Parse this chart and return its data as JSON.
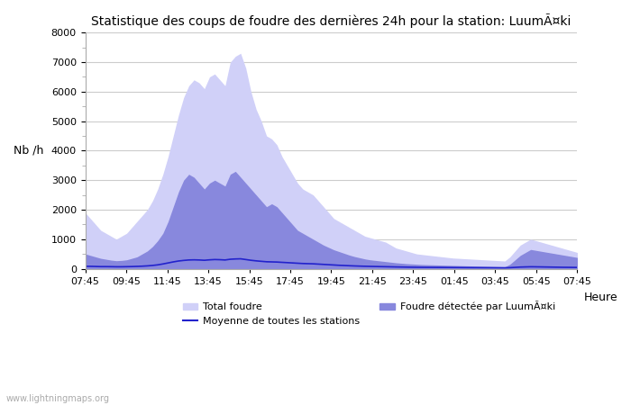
{
  "title": "Statistique des coups de foudre des dernières 24h pour la station: LuumÃ¤ki",
  "xlabel": "Heure",
  "ylabel": "Nb /h",
  "ylim": [
    0,
    8000
  ],
  "yticks": [
    0,
    1000,
    2000,
    3000,
    4000,
    5000,
    6000,
    7000,
    8000
  ],
  "xtick_labels": [
    "07:45",
    "09:45",
    "11:45",
    "13:45",
    "15:45",
    "17:45",
    "19:45",
    "21:45",
    "23:45",
    "01:45",
    "03:45",
    "05:45",
    "07:45"
  ],
  "color_total": "#d0d0f8",
  "color_detected": "#8888dd",
  "color_mean": "#2222cc",
  "watermark": "www.lightningmaps.org",
  "legend_total": "Total foudre",
  "legend_mean": "Moyenne de toutes les stations",
  "legend_detected": "Foudre détectée par LuumÃ¤ki",
  "total_foudre": [
    1900,
    1700,
    1500,
    1300,
    1200,
    1100,
    1000,
    1100,
    1200,
    1400,
    1600,
    1800,
    2000,
    2300,
    2700,
    3200,
    3800,
    4500,
    5200,
    5800,
    6200,
    6400,
    6300,
    6100,
    6500,
    6600,
    6400,
    6200,
    7000,
    7200,
    7300,
    6800,
    6000,
    5400,
    5000,
    4500,
    4400,
    4200,
    3800,
    3500,
    3200,
    2900,
    2700,
    2600,
    2500,
    2300,
    2100,
    1900,
    1700,
    1600,
    1500,
    1400,
    1300,
    1200,
    1100,
    1050,
    1000,
    950,
    900,
    800,
    700,
    650,
    600,
    550,
    500,
    480,
    460,
    440,
    420,
    400,
    380,
    360,
    350,
    340,
    330,
    320,
    310,
    300,
    290,
    280,
    270,
    260,
    400,
    600,
    800,
    900,
    1000,
    950,
    900,
    850,
    800,
    750,
    700,
    650,
    600,
    550
  ],
  "detected": [
    500,
    450,
    400,
    350,
    320,
    290,
    270,
    280,
    300,
    350,
    400,
    500,
    600,
    750,
    950,
    1200,
    1600,
    2100,
    2600,
    3000,
    3200,
    3100,
    2900,
    2700,
    2900,
    3000,
    2900,
    2800,
    3200,
    3300,
    3100,
    2900,
    2700,
    2500,
    2300,
    2100,
    2200,
    2100,
    1900,
    1700,
    1500,
    1300,
    1200,
    1100,
    1000,
    900,
    800,
    720,
    640,
    580,
    520,
    460,
    410,
    370,
    330,
    300,
    280,
    260,
    240,
    220,
    200,
    185,
    170,
    160,
    150,
    140,
    135,
    130,
    125,
    120,
    115,
    110,
    105,
    100,
    95,
    90,
    85,
    80,
    75,
    70,
    65,
    60,
    150,
    300,
    450,
    550,
    650,
    620,
    590,
    560,
    530,
    500,
    470,
    440,
    410,
    380
  ],
  "mean_line": [
    80,
    80,
    75,
    70,
    70,
    68,
    65,
    65,
    68,
    72,
    78,
    85,
    95,
    110,
    130,
    160,
    195,
    230,
    260,
    280,
    295,
    300,
    295,
    285,
    300,
    310,
    305,
    295,
    320,
    330,
    335,
    310,
    285,
    265,
    250,
    235,
    230,
    225,
    215,
    205,
    195,
    185,
    175,
    170,
    165,
    155,
    145,
    135,
    125,
    115,
    108,
    100,
    93,
    87,
    82,
    78,
    74,
    70,
    67,
    63,
    59,
    56,
    53,
    50,
    48,
    46,
    45,
    44,
    43,
    42,
    41,
    40,
    39,
    38,
    37,
    36,
    35,
    34,
    33,
    32,
    31,
    30,
    35,
    45,
    55,
    60,
    65,
    63,
    60,
    57,
    54,
    51,
    48,
    46,
    44,
    42
  ]
}
